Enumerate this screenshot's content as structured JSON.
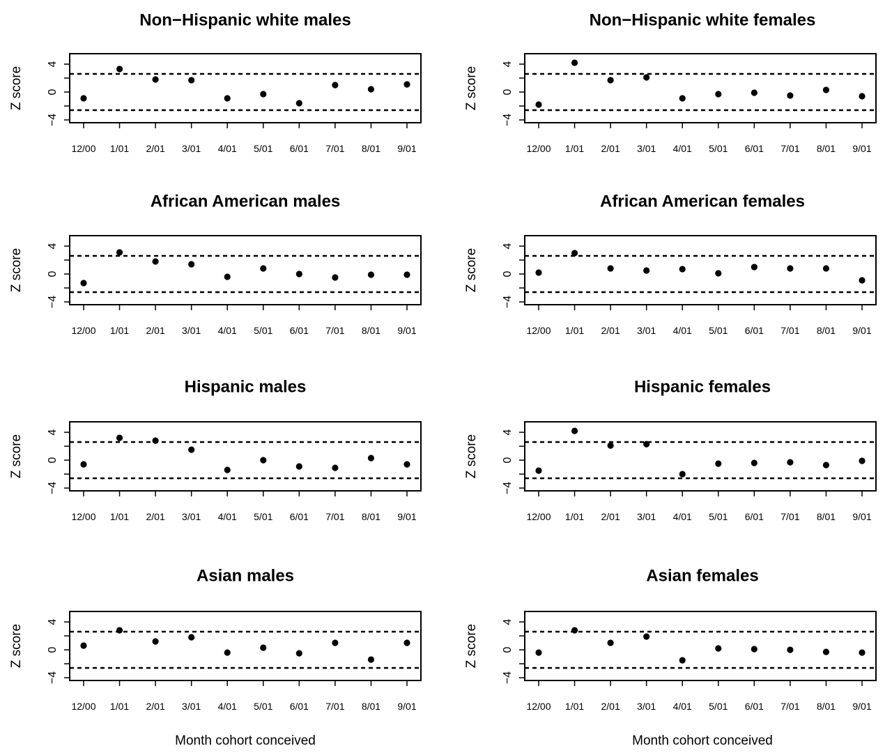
{
  "chart_data": [
    {
      "type": "scatter",
      "title": "Non−Hispanic white males",
      "ylabel": "Z score",
      "categories": [
        "12/00",
        "1/01",
        "2/01",
        "3/01",
        "4/01",
        "5/01",
        "6/01",
        "7/01",
        "8/01",
        "9/01"
      ],
      "yticks": [
        "4",
        "0",
        "−4"
      ],
      "ylim": [
        -4,
        4
      ],
      "ref_lines": [
        2.6,
        -2.6
      ],
      "values": [
        -0.9,
        3.3,
        1.8,
        1.7,
        -0.9,
        -0.3,
        -1.6,
        1.0,
        0.4,
        1.1
      ]
    },
    {
      "type": "scatter",
      "title": "Non−Hispanic white females",
      "ylabel": "Z score",
      "categories": [
        "12/00",
        "1/01",
        "2/01",
        "3/01",
        "4/01",
        "5/01",
        "6/01",
        "7/01",
        "8/01",
        "9/01"
      ],
      "yticks": [
        "4",
        "0",
        "−4"
      ],
      "ylim": [
        -4,
        4
      ],
      "ref_lines": [
        2.6,
        -2.6
      ],
      "values": [
        -1.8,
        4.2,
        1.7,
        2.1,
        -0.9,
        -0.3,
        -0.1,
        -0.5,
        0.3,
        -0.6
      ]
    },
    {
      "type": "scatter",
      "title": "African American males",
      "ylabel": "Z score",
      "categories": [
        "12/00",
        "1/01",
        "2/01",
        "3/01",
        "4/01",
        "5/01",
        "6/01",
        "7/01",
        "8/01",
        "9/01"
      ],
      "yticks": [
        "4",
        "0",
        "−4"
      ],
      "ylim": [
        -4,
        4
      ],
      "ref_lines": [
        2.6,
        -2.6
      ],
      "values": [
        -1.3,
        3.1,
        1.8,
        1.4,
        -0.4,
        0.8,
        0.0,
        -0.5,
        -0.1,
        -0.1
      ]
    },
    {
      "type": "scatter",
      "title": "African American females",
      "ylabel": "Z score",
      "categories": [
        "12/00",
        "1/01",
        "2/01",
        "3/01",
        "4/01",
        "5/01",
        "6/01",
        "7/01",
        "8/01",
        "9/01"
      ],
      "yticks": [
        "4",
        "0",
        "−4"
      ],
      "ylim": [
        -4,
        4
      ],
      "ref_lines": [
        2.6,
        -2.6
      ],
      "values": [
        0.2,
        3.0,
        0.8,
        0.5,
        0.7,
        0.1,
        1.0,
        0.8,
        0.8,
        -0.9
      ]
    },
    {
      "type": "scatter",
      "title": "Hispanic males",
      "ylabel": "Z score",
      "categories": [
        "12/00",
        "1/01",
        "2/01",
        "3/01",
        "4/01",
        "5/01",
        "6/01",
        "7/01",
        "8/01",
        "9/01"
      ],
      "yticks": [
        "4",
        "0",
        "−4"
      ],
      "ylim": [
        -4,
        4
      ],
      "ref_lines": [
        2.6,
        -2.6
      ],
      "values": [
        -0.6,
        3.2,
        2.8,
        1.5,
        -1.4,
        0.0,
        -0.9,
        -1.1,
        0.3,
        -0.6
      ]
    },
    {
      "type": "scatter",
      "title": "Hispanic females",
      "ylabel": "Z score",
      "categories": [
        "12/00",
        "1/01",
        "2/01",
        "3/01",
        "4/01",
        "5/01",
        "6/01",
        "7/01",
        "8/01",
        "9/01"
      ],
      "yticks": [
        "4",
        "0",
        "−4"
      ],
      "ylim": [
        -4,
        4
      ],
      "ref_lines": [
        2.6,
        -2.6
      ],
      "values": [
        -1.5,
        4.2,
        2.1,
        2.3,
        -2.0,
        -0.5,
        -0.4,
        -0.3,
        -0.7,
        -0.1
      ]
    },
    {
      "type": "scatter",
      "title": "Asian males",
      "ylabel": "Z score",
      "xlabel": "Month cohort conceived",
      "categories": [
        "12/00",
        "1/01",
        "2/01",
        "3/01",
        "4/01",
        "5/01",
        "6/01",
        "7/01",
        "8/01",
        "9/01"
      ],
      "yticks": [
        "4",
        "0",
        "−4"
      ],
      "ylim": [
        -4,
        4
      ],
      "ref_lines": [
        2.6,
        -2.6
      ],
      "values": [
        0.6,
        2.8,
        1.2,
        1.8,
        -0.4,
        0.3,
        -0.5,
        1.0,
        -1.4,
        1.0
      ]
    },
    {
      "type": "scatter",
      "title": "Asian females",
      "ylabel": "Z score",
      "xlabel": "Month cohort conceived",
      "categories": [
        "12/00",
        "1/01",
        "2/01",
        "3/01",
        "4/01",
        "5/01",
        "6/01",
        "7/01",
        "8/01",
        "9/01"
      ],
      "yticks": [
        "4",
        "0",
        "−4"
      ],
      "ylim": [
        -4,
        4
      ],
      "ref_lines": [
        2.6,
        -2.6
      ],
      "values": [
        -0.4,
        2.8,
        1.0,
        1.9,
        -1.5,
        0.2,
        0.1,
        0.0,
        -0.3,
        -0.4
      ]
    }
  ]
}
